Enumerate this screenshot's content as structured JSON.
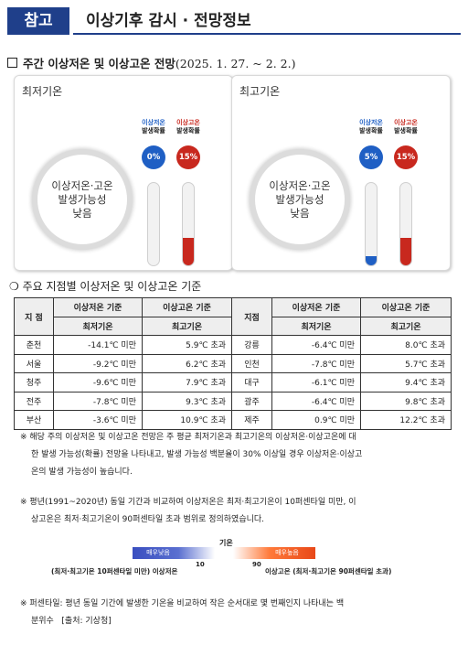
{
  "header": {
    "tag": "참고",
    "title": "이상기후 감시 · 전망정보"
  },
  "weekly": {
    "heading_bold": "주간 이상저온 및 이상고온 전망",
    "heading_period": "(2025. 1. 27. ~ 2. 2.)",
    "panels": [
      {
        "title": "최저기온",
        "circle_line1": "이상저온·고온",
        "circle_line2": "발생가능성",
        "circle_line3": "낮음",
        "low_label1": "이상저온",
        "low_label2": "발생확률",
        "high_label1": "이상고온",
        "high_label2": "발생확률",
        "low_prob": "0%",
        "high_prob": "15%",
        "low_fraction": 0.0,
        "high_fraction": 0.15
      },
      {
        "title": "최고기온",
        "circle_line1": "이상저온·고온",
        "circle_line2": "발생가능성",
        "circle_line3": "낮음",
        "low_label1": "이상저온",
        "low_label2": "발생확률",
        "high_label1": "이상고온",
        "high_label2": "발생확률",
        "low_prob": "5%",
        "high_prob": "15%",
        "low_fraction": 0.05,
        "high_fraction": 0.15
      }
    ],
    "colors": {
      "low": "#1f5fc4",
      "high": "#c8281e"
    }
  },
  "criteria": {
    "heading": "주요 지점별 이상저온 및 이상고온 기준",
    "head": {
      "station": "지 점",
      "station2": "지점",
      "low": "이상저온 기준",
      "high": "이상고온 기준",
      "low_sub": "최저기온",
      "high_sub": "최고기온"
    },
    "rows": [
      {
        "a": "춘천",
        "a_low": "-14.1℃ 미만",
        "a_high": "5.9℃ 초과",
        "b": "강릉",
        "b_low": "-6.4℃ 미만",
        "b_high": "8.0℃ 초과"
      },
      {
        "a": "서울",
        "a_low": "-9.2℃ 미만",
        "a_high": "6.2℃ 초과",
        "b": "인천",
        "b_low": "-7.8℃ 미만",
        "b_high": "5.7℃ 초과"
      },
      {
        "a": "청주",
        "a_low": "-9.6℃ 미만",
        "a_high": "7.9℃ 초과",
        "b": "대구",
        "b_low": "-6.1℃ 미만",
        "b_high": "9.4℃ 초과"
      },
      {
        "a": "전주",
        "a_low": "-7.8℃ 미만",
        "a_high": "9.3℃ 초과",
        "b": "광주",
        "b_low": "-6.4℃ 미만",
        "b_high": "9.8℃ 초과"
      },
      {
        "a": "부산",
        "a_low": "-3.6℃ 미만",
        "a_high": "10.9℃ 초과",
        "b": "제주",
        "b_low": "0.9℃ 미만",
        "b_high": "12.2℃ 초과"
      }
    ]
  },
  "notes": {
    "n1_line1": "※ 해당 주의 이상저온 및 이상고온 전망은 주 평균 최저기온과 최고기온의 이상저온·이상고온에 대",
    "n1_line2": "한 발생 가능성(확률) 전망을 나타내고, 발생 가능성 백분율이 30% 이상일 경우 이상저온·이상고",
    "n1_line3": "온의 발생 가능성이 높습니다.",
    "n2_line1": "※ 평년(1991~2020년) 동일 기간과 비교하여 이상저온은 최저·최고기온이 10퍼센타일 미만, 이",
    "n2_line2": "상고온은 최저·최고기온이 90퍼센타일 초과 범위로 정의하였습니다.",
    "n3_line1": "※ 퍼센타일: 평년 동일 기간에 발생한 기온을 비교하여 작은 순서대로 몇 번째인지 나타내는 백",
    "n3_line2": "분위수   [출처: 기상청]"
  },
  "scale": {
    "title": "기온",
    "left_seg": "매우낮음",
    "right_seg": "매우높음",
    "tick_left": "10",
    "tick_right": "90",
    "left_caption": "(최저·최고기온 10퍼센타일 미만) 이상저온",
    "right_caption": "이상고온 (최저·최고기온 90퍼센타일 초과)"
  }
}
